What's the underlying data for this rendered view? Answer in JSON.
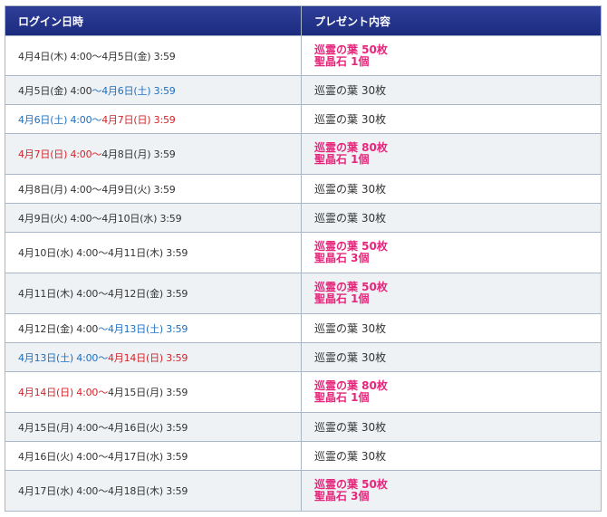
{
  "headers": {
    "login_time": "ログイン日時",
    "present": "プレゼント内容"
  },
  "rows": [
    {
      "d1": "4月4日(木) 4:00",
      "sep": "～",
      "d2": "4月5日(金) 3:59",
      "d1_color": "norm",
      "d2_color": "norm",
      "gift1": "巡霊の葉 50枚",
      "gift2": "聖晶石 1個",
      "special": true
    },
    {
      "d1": "4月5日(金) 4:00",
      "sep": "～",
      "d2": "4月6日(土) 3:59",
      "d1_color": "norm",
      "d2_color": "blue",
      "gift1": "巡霊の葉 30枚",
      "gift2": "",
      "special": false
    },
    {
      "d1": "4月6日(土) 4:00",
      "sep": "～",
      "d2": "4月7日(日) 3:59",
      "d1_color": "blue",
      "d2_color": "red",
      "gift1": "巡霊の葉 30枚",
      "gift2": "",
      "special": false
    },
    {
      "d1": "4月7日(日) 4:00",
      "sep": "～",
      "d2": "4月8日(月) 3:59",
      "d1_color": "red",
      "d2_color": "norm",
      "gift1": "巡霊の葉 80枚",
      "gift2": "聖晶石 1個",
      "special": true
    },
    {
      "d1": "4月8日(月) 4:00",
      "sep": "～",
      "d2": "4月9日(火) 3:59",
      "d1_color": "norm",
      "d2_color": "norm",
      "gift1": "巡霊の葉 30枚",
      "gift2": "",
      "special": false
    },
    {
      "d1": "4月9日(火) 4:00",
      "sep": "～",
      "d2": "4月10日(水) 3:59",
      "d1_color": "norm",
      "d2_color": "norm",
      "gift1": "巡霊の葉 30枚",
      "gift2": "",
      "special": false
    },
    {
      "d1": "4月10日(水) 4:00",
      "sep": "～",
      "d2": "4月11日(木) 3:59",
      "d1_color": "norm",
      "d2_color": "norm",
      "gift1": "巡霊の葉 50枚",
      "gift2": "聖晶石 3個",
      "special": true
    },
    {
      "d1": "4月11日(木) 4:00",
      "sep": "～",
      "d2": "4月12日(金) 3:59",
      "d1_color": "norm",
      "d2_color": "norm",
      "gift1": "巡霊の葉 50枚",
      "gift2": "聖晶石 1個",
      "special": true
    },
    {
      "d1": "4月12日(金) 4:00",
      "sep": "～",
      "d2": "4月13日(土) 3:59",
      "d1_color": "norm",
      "d2_color": "blue",
      "gift1": "巡霊の葉 30枚",
      "gift2": "",
      "special": false
    },
    {
      "d1": "4月13日(土) 4:00",
      "sep": "～",
      "d2": "4月14日(日) 3:59",
      "d1_color": "blue",
      "d2_color": "red",
      "gift1": "巡霊の葉 30枚",
      "gift2": "",
      "special": false
    },
    {
      "d1": "4月14日(日) 4:00",
      "sep": "～",
      "d2": "4月15日(月) 3:59",
      "d1_color": "red",
      "d2_color": "norm",
      "gift1": "巡霊の葉 80枚",
      "gift2": "聖晶石 1個",
      "special": true
    },
    {
      "d1": "4月15日(月) 4:00",
      "sep": "～",
      "d2": "4月16日(火) 3:59",
      "d1_color": "norm",
      "d2_color": "norm",
      "gift1": "巡霊の葉 30枚",
      "gift2": "",
      "special": false
    },
    {
      "d1": "4月16日(火) 4:00",
      "sep": "～",
      "d2": "4月17日(水) 3:59",
      "d1_color": "norm",
      "d2_color": "norm",
      "gift1": "巡霊の葉 30枚",
      "gift2": "",
      "special": false
    },
    {
      "d1": "4月17日(水) 4:00",
      "sep": "～",
      "d2": "4月18日(木) 3:59",
      "d1_color": "norm",
      "d2_color": "norm",
      "gift1": "巡霊の葉 50枚",
      "gift2": "聖晶石 3個",
      "special": true
    }
  ],
  "colors": {
    "header_bg": "#1f2f84",
    "saturday": "#1e6fc0",
    "sunday": "#d2242a",
    "highlight_gift": "#e5267b",
    "row_alt": "#eef2f5"
  }
}
